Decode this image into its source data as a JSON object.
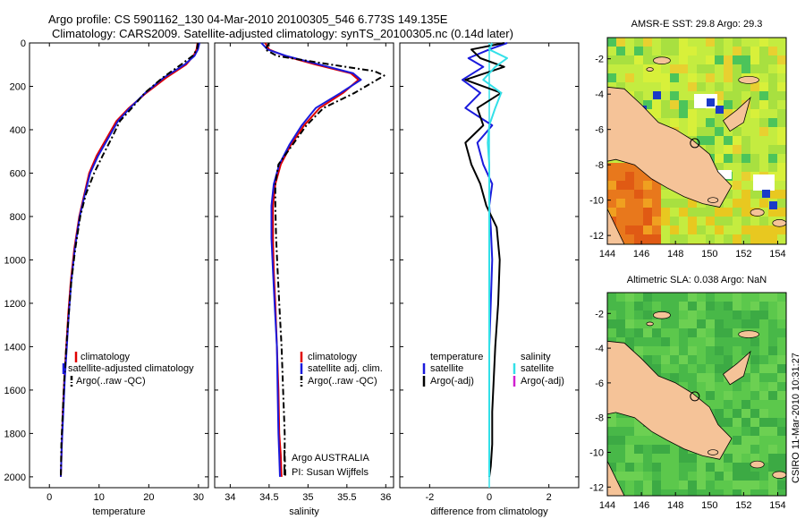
{
  "header": {
    "line1": "Argo profile: CS 5901162_130 04-Mar-2010 20100305_546 6.773S 149.135E",
    "line2": "Climatology: CARS2009. Satellite-adjusted climatology: synTS_20100305.nc (0.14d later)"
  },
  "side_stamp": "CSIRO 11-Mar-2010 10:31:27",
  "colors": {
    "climatology": "#e00000",
    "satellite": "#1a1adc",
    "argo": "#000000",
    "cyan": "#33e0e8",
    "magenta": "#d020d0",
    "land": "#f5c398",
    "ocean": "#55c050"
  },
  "chart_data": [
    {
      "type": "line",
      "xlabel": "temperature",
      "xlim": [
        -4,
        32
      ],
      "xticks": [
        0,
        10,
        20,
        30
      ],
      "ylim": [
        2050,
        0
      ],
      "yticks": [
        0,
        200,
        400,
        600,
        800,
        1000,
        1200,
        1400,
        1600,
        1800,
        2000
      ],
      "series": [
        {
          "name": "climatology",
          "style": "solid",
          "color": "#e00000",
          "x": [
            29.8,
            29.6,
            29.0,
            27.5,
            23.5,
            19.5,
            16.0,
            13.5,
            11.5,
            9.5,
            8.0,
            7.0,
            6.0,
            5.0,
            4.3,
            3.8,
            3.4,
            3.0,
            2.7,
            2.5,
            2.3
          ],
          "y": [
            0,
            30,
            60,
            100,
            160,
            230,
            300,
            360,
            440,
            520,
            600,
            700,
            800,
            950,
            1100,
            1250,
            1400,
            1550,
            1700,
            1850,
            2000
          ]
        },
        {
          "name": "satellite-adjusted climatology",
          "style": "solid",
          "color": "#1a1adc",
          "x": [
            30.2,
            29.9,
            29.2,
            27.2,
            23.0,
            19.3,
            16.2,
            13.8,
            11.8,
            9.8,
            8.2,
            7.1,
            6.1,
            5.1,
            4.4,
            3.9,
            3.5,
            3.1,
            2.8,
            2.5,
            2.3
          ],
          "y": [
            0,
            30,
            60,
            100,
            160,
            230,
            300,
            360,
            440,
            520,
            600,
            700,
            800,
            950,
            1100,
            1250,
            1400,
            1550,
            1700,
            1850,
            2000
          ]
        },
        {
          "name": "Argo(..raw -QC)",
          "style": "dashdot",
          "color": "#000000",
          "x": [
            29.9,
            29.7,
            28.8,
            26.5,
            22.8,
            19.2,
            16.6,
            14.2,
            12.5,
            10.7,
            9.0,
            7.3,
            6.2,
            5.2,
            4.4,
            3.9,
            3.4,
            3.0,
            2.7,
            2.4,
            2.3
          ],
          "y": [
            0,
            30,
            60,
            100,
            160,
            230,
            300,
            360,
            440,
            520,
            600,
            700,
            800,
            950,
            1100,
            1250,
            1400,
            1550,
            1700,
            1850,
            2000
          ]
        }
      ],
      "legend_placement": "center"
    },
    {
      "type": "line",
      "xlabel": "salinity",
      "xlim": [
        33.8,
        36.1
      ],
      "xticks": [
        34,
        34.5,
        35,
        35.5,
        36
      ],
      "ylim": [
        2050,
        0
      ],
      "yticks": [
        0,
        200,
        400,
        600,
        800,
        1000,
        1200,
        1400,
        1600,
        1800,
        2000
      ],
      "series": [
        {
          "name": "climatology",
          "style": "solid",
          "color": "#e00000",
          "x": [
            34.45,
            34.5,
            34.7,
            35.1,
            35.55,
            35.65,
            35.45,
            35.15,
            34.95,
            34.78,
            34.65,
            34.58,
            34.55,
            34.55,
            34.56,
            34.58,
            34.6,
            34.62,
            34.63,
            34.65,
            34.66
          ],
          "y": [
            0,
            30,
            60,
            100,
            140,
            170,
            230,
            300,
            380,
            470,
            560,
            650,
            750,
            900,
            1050,
            1200,
            1400,
            1600,
            1800,
            1900,
            2000
          ]
        },
        {
          "name": "satellite adj. clim.",
          "style": "solid",
          "color": "#1a1adc",
          "x": [
            34.4,
            34.48,
            34.72,
            35.15,
            35.58,
            35.68,
            35.42,
            35.1,
            34.92,
            34.76,
            34.63,
            34.56,
            34.53,
            34.53,
            34.55,
            34.57,
            34.6,
            34.61,
            34.62,
            34.63,
            34.64
          ],
          "y": [
            0,
            30,
            60,
            100,
            140,
            170,
            230,
            300,
            380,
            470,
            560,
            650,
            750,
            900,
            1050,
            1200,
            1400,
            1600,
            1800,
            1900,
            2000
          ]
        },
        {
          "name": "Argo(..raw -QC)",
          "style": "dashdot",
          "color": "#000000",
          "x": [
            34.5,
            34.45,
            34.6,
            35.3,
            35.85,
            35.98,
            35.6,
            35.2,
            34.98,
            34.8,
            34.62,
            34.58,
            34.58,
            34.59,
            34.61,
            34.63,
            34.66,
            34.68,
            34.7,
            34.7,
            34.71
          ],
          "y": [
            0,
            30,
            60,
            100,
            130,
            150,
            230,
            300,
            380,
            470,
            560,
            650,
            750,
            900,
            1050,
            1200,
            1400,
            1600,
            1800,
            1900,
            2000
          ]
        }
      ],
      "annotations": [
        "Argo AUSTRALIA",
        "PI: Susan Wijffels"
      ],
      "legend_placement": "center"
    },
    {
      "type": "line",
      "xlabel": "difference from climatology",
      "xlim": [
        -3,
        3
      ],
      "xticks": [
        -2,
        0,
        2
      ],
      "ylim": [
        2050,
        0
      ],
      "yticks": [
        0,
        200,
        400,
        600,
        800,
        1000,
        1200,
        1400,
        1600,
        1800,
        2000
      ],
      "series": [
        {
          "name": "temperature satellite",
          "style": "solid",
          "color": "#1a1adc",
          "x": [
            0.6,
            0.0,
            -0.7,
            -0.2,
            -0.9,
            -0.3,
            -0.8,
            0.1,
            -0.4,
            -0.2,
            0.1,
            0.0,
            0.05,
            0.1,
            0.05,
            0.0,
            0.0,
            0.0,
            0.0,
            0.0,
            0.0
          ],
          "y": [
            0,
            30,
            70,
            110,
            170,
            230,
            300,
            380,
            460,
            560,
            650,
            750,
            850,
            1000,
            1200,
            1400,
            1550,
            1700,
            1850,
            1950,
            2000
          ]
        },
        {
          "name": "temperature Argo(-adj)",
          "style": "solid",
          "color": "#000000",
          "x": [
            0.5,
            -0.6,
            -0.3,
            0.5,
            -0.8,
            0.4,
            -0.4,
            -0.2,
            -0.8,
            -0.6,
            -0.3,
            -0.1,
            0.25,
            0.35,
            0.3,
            0.2,
            0.15,
            0.1,
            0.1,
            0.05,
            0.0
          ],
          "y": [
            0,
            30,
            70,
            110,
            170,
            230,
            300,
            380,
            460,
            560,
            650,
            750,
            850,
            1000,
            1200,
            1400,
            1550,
            1700,
            1850,
            1950,
            2000
          ]
        },
        {
          "name": "salinity satellite",
          "style": "solid",
          "color": "#33e0e8",
          "x": [
            0.1,
            0.0,
            0.6,
            0.2,
            -0.2,
            0.4,
            0.2,
            0.0,
            -0.05,
            0.0,
            0.0,
            0.0,
            0.0,
            0.0,
            0.0,
            0.0,
            0.0,
            0.0,
            0.0,
            0.0,
            0.0
          ],
          "y": [
            0,
            30,
            70,
            110,
            170,
            230,
            300,
            380,
            460,
            560,
            650,
            750,
            850,
            1000,
            1200,
            1400,
            1550,
            1700,
            1850,
            1950,
            2000
          ]
        }
      ],
      "legend_placement": "center"
    },
    {
      "type": "heatmap",
      "title": "AMSR-E SST: 29.8 Argo: 29.3",
      "xlim": [
        144,
        154.5
      ],
      "ylim": [
        -12.5,
        -0.8
      ],
      "xticks": [
        144,
        146,
        148,
        150,
        152,
        154
      ],
      "yticks": [
        -2,
        -4,
        -6,
        -8,
        -10,
        -12
      ],
      "marker": {
        "x": 149.135,
        "y": -6.773
      }
    },
    {
      "type": "heatmap",
      "title": "Altimetric SLA: 0.038 Argo: NaN",
      "xlim": [
        144,
        154.5
      ],
      "ylim": [
        -12.5,
        -0.8
      ],
      "xticks": [
        144,
        146,
        148,
        150,
        152,
        154
      ],
      "yticks": [
        -2,
        -4,
        -6,
        -8,
        -10,
        -12
      ],
      "marker": {
        "x": 149.135,
        "y": -6.773
      }
    }
  ],
  "legends": {
    "temperature": [
      "climatology",
      "satellite-adjusted climatology",
      "Argo(..raw -QC)"
    ],
    "salinity": [
      "climatology",
      "satellite adj. clim.",
      "Argo(..raw -QC)"
    ],
    "difference": {
      "left_header": "temperature",
      "right_header": "salinity",
      "left": [
        "satellite",
        "Argo(-adj)"
      ],
      "right": [
        "satellite",
        "Argo(-adj)"
      ]
    }
  }
}
